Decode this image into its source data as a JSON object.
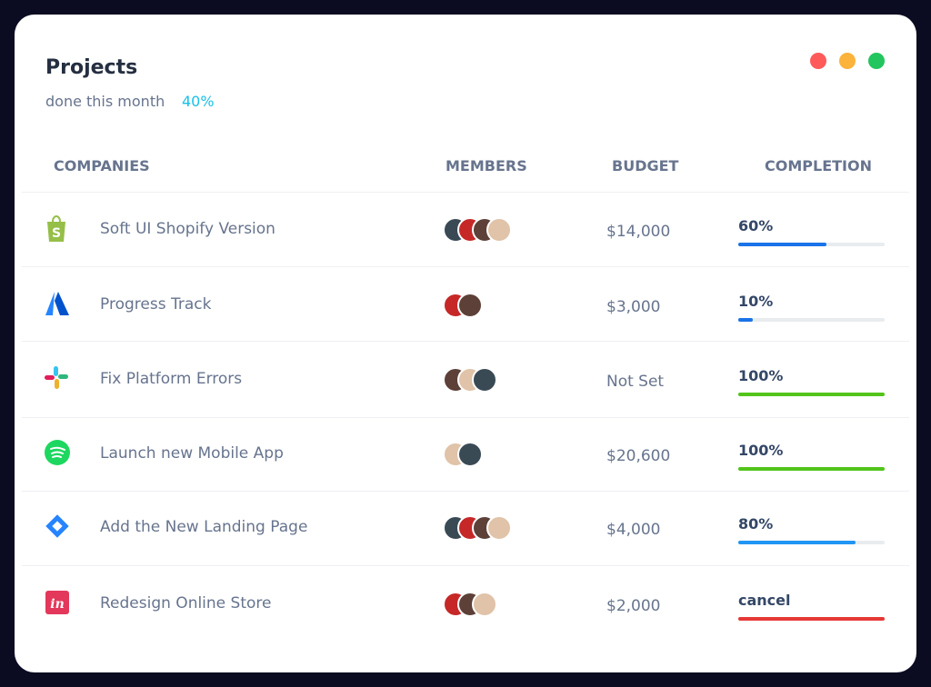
{
  "header": {
    "title": "Projects",
    "subtitle": "done this month",
    "highlight": "40%"
  },
  "table": {
    "columns": [
      "COMPANIES",
      "MEMBERS",
      "BUDGET",
      "COMPLETION"
    ],
    "rows": [
      {
        "company": "Soft UI Shopify Version",
        "budget": "$14,000",
        "completion": {
          "value": 60,
          "label": "60%"
        },
        "bar_color": "#1a73e8"
      },
      {
        "company": "Progress Track",
        "budget": "$3,000",
        "completion": {
          "value": 10,
          "label": "10%"
        },
        "bar_color": "#1a73e8"
      },
      {
        "company": "Fix Platform Errors",
        "budget": "Not Set",
        "completion": {
          "value": 100,
          "label": "100%"
        },
        "bar_color": "#52c41a"
      },
      {
        "company": "Launch new Mobile App",
        "budget": "$20,600",
        "completion": {
          "value": 100,
          "label": "100%"
        },
        "bar_color": "#52c41a"
      },
      {
        "company": "Add the New Landing Page",
        "budget": "$4,000",
        "completion": {
          "value": 80,
          "label": "80%"
        },
        "bar_color": "#2196f3"
      },
      {
        "company": "Redesign Online Store",
        "budget": "$2,000",
        "completion_label": "cancel",
        "bar_color": "#e53935"
      }
    ]
  }
}
